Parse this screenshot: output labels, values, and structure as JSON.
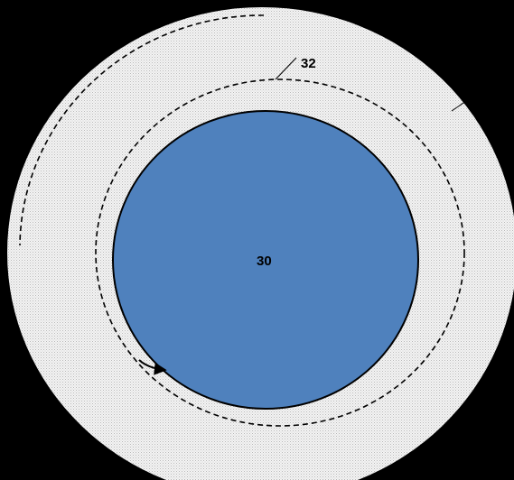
{
  "diagram": {
    "labels": {
      "inner_disk": "30",
      "dashed_boundary": "32"
    },
    "colors": {
      "background": "#000000",
      "outer_ring_dots": "#bdbdbd",
      "outer_ring_fill": "#f2f2f2",
      "inner_disk_fill": "#4f81bd",
      "stroke": "#000000"
    }
  }
}
